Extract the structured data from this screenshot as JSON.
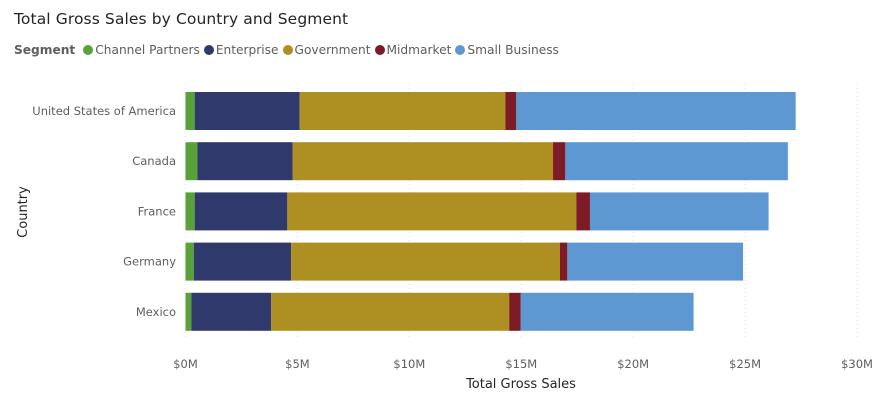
{
  "chart_data": {
    "type": "bar",
    "orientation": "horizontal",
    "stacked": true,
    "title": "Total Gross Sales by Country and Segment",
    "legend_title": "Segment",
    "legend_position": "top-left",
    "xlabel": "Total Gross Sales",
    "ylabel": "Country",
    "xlim": [
      0,
      30
    ],
    "x_unit": "$M",
    "x_ticks": [
      "$0M",
      "$5M",
      "$10M",
      "$15M",
      "$20M",
      "$25M",
      "$30M"
    ],
    "x_tick_values": [
      0,
      5,
      10,
      15,
      20,
      25,
      30
    ],
    "grid": "vertical dotted",
    "categories": [
      "United States of America",
      "Canada",
      "France",
      "Germany",
      "Mexico"
    ],
    "series": [
      {
        "name": "Channel Partners",
        "color": "#59A23A",
        "values": [
          0.41,
          0.53,
          0.41,
          0.37,
          0.26
        ]
      },
      {
        "name": "Enterprise",
        "color": "#2F396B",
        "values": [
          4.69,
          4.26,
          4.14,
          4.35,
          3.57
        ]
      },
      {
        "name": "Government",
        "color": "#AD9021",
        "values": [
          9.19,
          11.63,
          12.91,
          12.01,
          10.63
        ]
      },
      {
        "name": "Midmarket",
        "color": "#7D1C26",
        "values": [
          0.49,
          0.55,
          0.61,
          0.33,
          0.52
        ]
      },
      {
        "name": "Small Business",
        "color": "#5E98D3",
        "values": [
          12.48,
          9.94,
          7.98,
          7.85,
          7.72
        ]
      }
    ]
  }
}
